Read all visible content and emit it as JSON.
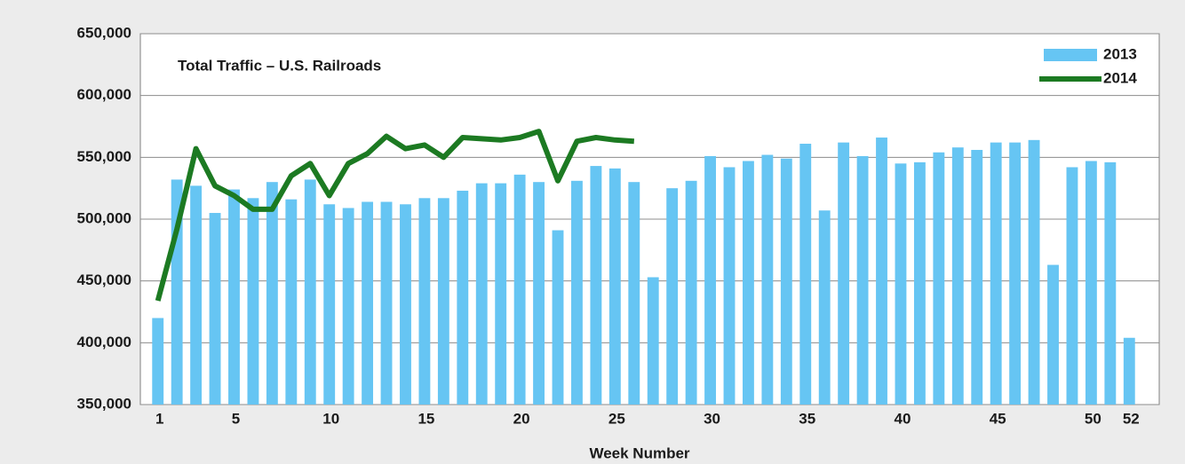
{
  "chart_data": {
    "type": "bar-line",
    "title": "Total Traffic – U.S. Railroads",
    "x_label": "Week Number",
    "categories": [
      1,
      null,
      null,
      null,
      5,
      null,
      null,
      null,
      null,
      10,
      null,
      null,
      null,
      null,
      15,
      null,
      null,
      null,
      null,
      20,
      null,
      null,
      null,
      null,
      25,
      null,
      null,
      null,
      null,
      30,
      null,
      null,
      null,
      null,
      35,
      null,
      null,
      null,
      null,
      40,
      null,
      null,
      null,
      null,
      45,
      null,
      null,
      null,
      null,
      50,
      null,
      52
    ],
    "series": [
      {
        "name": "2013",
        "type": "bar",
        "color": "#66c5f3",
        "values": [
          420000,
          532000,
          527000,
          505000,
          524000,
          517000,
          530000,
          516000,
          532000,
          512000,
          509000,
          514000,
          514000,
          512000,
          517000,
          517000,
          523000,
          529000,
          529000,
          536000,
          530000,
          491000,
          531000,
          543000,
          541000,
          530000,
          453000,
          525000,
          531000,
          551000,
          542000,
          547000,
          552000,
          549000,
          561000,
          507000,
          562000,
          551000,
          566000,
          545000,
          546000,
          554000,
          558000,
          556000,
          562000,
          562000,
          564000,
          463000,
          542000,
          547000,
          546000,
          404000
        ]
      },
      {
        "name": "2014",
        "type": "line",
        "color": "#1c7a22",
        "values": [
          434000,
          492000,
          557000,
          527000,
          519000,
          508000,
          508000,
          535000,
          545000,
          519000,
          545000,
          553000,
          567000,
          557000,
          560000,
          550000,
          566000,
          565000,
          564000,
          566000,
          571000,
          531000,
          563000,
          566000,
          564000,
          563000,
          null,
          null,
          null,
          null,
          null,
          null,
          null,
          null,
          null,
          null,
          null,
          null,
          null,
          null,
          null,
          null,
          null,
          null,
          null,
          null,
          null,
          null,
          null,
          null,
          null,
          null
        ]
      }
    ],
    "ylim": [
      350000,
      650000
    ],
    "yticks": [
      {
        "value": 350000,
        "label": "350,000"
      },
      {
        "value": 400000,
        "label": "400,000"
      },
      {
        "value": 450000,
        "label": "450,000"
      },
      {
        "value": 500000,
        "label": "500,000"
      },
      {
        "value": 550000,
        "label": "550,000"
      },
      {
        "value": 600000,
        "label": "600,000"
      },
      {
        "value": 650000,
        "label": "650,000"
      }
    ],
    "grid": true,
    "legend": "top-right"
  }
}
